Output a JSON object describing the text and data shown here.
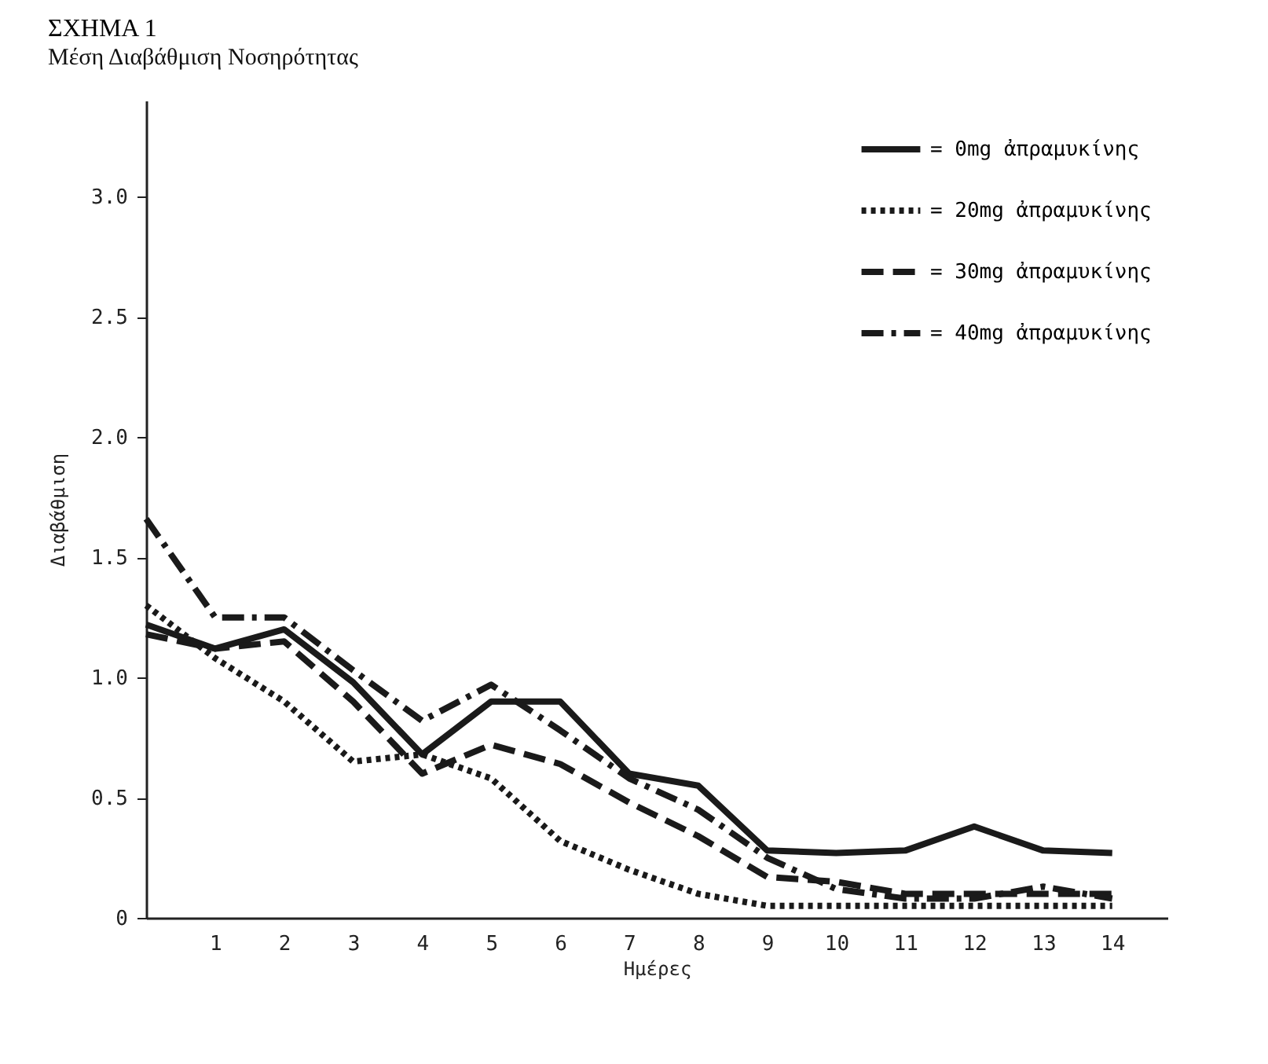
{
  "chart_data": {
    "type": "line",
    "title": "ΣΧΗΜΑ 1",
    "subtitle": "Μέση Διαβάθμιση Νοσηρότητας",
    "xlabel": "Ημέρες",
    "ylabel": "Διαβάθμιση",
    "x": [
      0,
      1,
      2,
      3,
      4,
      5,
      6,
      7,
      8,
      9,
      10,
      11,
      12,
      13,
      14
    ],
    "series": [
      {
        "name": "= 0mg ἀπραμυκίνης",
        "color": "#1a1a1a",
        "line_style": "solid",
        "values": [
          1.22,
          1.12,
          1.2,
          0.98,
          0.68,
          0.9,
          0.9,
          0.6,
          0.55,
          0.28,
          0.27,
          0.28,
          0.38,
          0.28,
          0.27
        ]
      },
      {
        "name": "= 20mg ἀπραμυκίνης",
        "color": "#1a1a1a",
        "line_style": "dotted",
        "values": [
          1.3,
          1.08,
          0.9,
          0.65,
          0.68,
          0.58,
          0.32,
          0.2,
          0.1,
          0.05,
          0.05,
          0.05,
          0.05,
          0.05,
          0.05
        ]
      },
      {
        "name": "= 30mg ἀπραμυκίνης",
        "color": "#1a1a1a",
        "line_style": "dashed",
        "values": [
          1.18,
          1.12,
          1.15,
          0.9,
          0.6,
          0.72,
          0.64,
          0.48,
          0.34,
          0.17,
          0.15,
          0.1,
          0.1,
          0.1,
          0.1
        ]
      },
      {
        "name": "= 40mg ἀπραμυκίνης",
        "color": "#1a1a1a",
        "line_style": "dashdot",
        "values": [
          1.66,
          1.25,
          1.25,
          1.03,
          0.82,
          0.97,
          0.78,
          0.58,
          0.45,
          0.25,
          0.12,
          0.08,
          0.08,
          0.13,
          0.08
        ]
      }
    ],
    "xlim": [
      0,
      14.8
    ],
    "xticks": [
      1,
      2,
      3,
      4,
      5,
      6,
      7,
      8,
      9,
      10,
      11,
      12,
      13,
      14
    ],
    "ylim": [
      0,
      3.4
    ],
    "yticks": [
      0,
      {
        "value": 0.5,
        "label": "0.5"
      },
      {
        "value": 1,
        "label": "1.0"
      },
      {
        "value": 1.5,
        "label": "1.5"
      },
      {
        "value": 2,
        "label": "2.0"
      },
      {
        "value": 2.5,
        "label": "2.5"
      },
      {
        "value": 3,
        "label": "3.0"
      }
    ],
    "grid": false,
    "legend": "top right",
    "marker": "none"
  }
}
